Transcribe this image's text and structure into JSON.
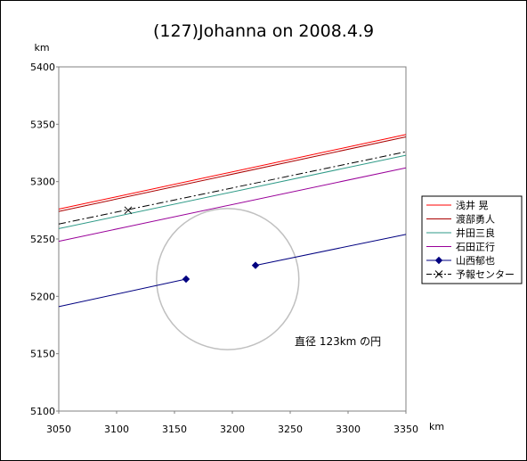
{
  "chart_data": {
    "type": "line",
    "title": "(127)Johanna on 2008.4.9",
    "xlabel": "km",
    "ylabel": "km",
    "xlim": [
      3050,
      3350
    ],
    "ylim": [
      5100,
      5400
    ],
    "xticks": [
      3050,
      3100,
      3150,
      3200,
      3250,
      3300,
      3350
    ],
    "yticks": [
      5100,
      5150,
      5200,
      5250,
      5300,
      5350,
      5400
    ],
    "grid": false,
    "legend_position": "right",
    "series": [
      {
        "name": "浅井 晃",
        "color": "#ff0000",
        "style": "solid",
        "marker": "none",
        "x": [
          3050,
          3350
        ],
        "y": [
          5276,
          5341
        ]
      },
      {
        "name": "渡部勇人",
        "color": "#aa0000",
        "style": "solid",
        "marker": "none",
        "x": [
          3050,
          3350
        ],
        "y": [
          5274,
          5339
        ]
      },
      {
        "name": "井田三良",
        "color": "#2e9a87",
        "style": "solid",
        "marker": "none",
        "x": [
          3050,
          3350
        ],
        "y": [
          5259,
          5323
        ]
      },
      {
        "name": "石田正行",
        "color": "#990099",
        "style": "solid",
        "marker": "none",
        "x": [
          3050,
          3350
        ],
        "y": [
          5248,
          5312
        ]
      },
      {
        "name": "山西郁也",
        "color": "#000080",
        "style": "solid",
        "marker": "diamond",
        "segments": [
          {
            "x": [
              3050,
              3160
            ],
            "y": [
              5191,
              5215
            ],
            "marker_at": [
              3160,
              5215
            ]
          },
          {
            "x": [
              3220,
              3350
            ],
            "y": [
              5227,
              5254
            ],
            "marker_at": [
              3220,
              5227
            ]
          }
        ]
      },
      {
        "name": "予報センター",
        "color": "#000000",
        "style": "dashdot",
        "marker": "x",
        "x": [
          3050,
          3350
        ],
        "y": [
          5263,
          5326
        ],
        "marker_at": [
          3110,
          5275
        ]
      }
    ],
    "circle": {
      "center_x": 3196,
      "center_y": 5215,
      "radius": 61.5,
      "color": "#c0c0c0"
    },
    "annotation": "直径 123km の円"
  }
}
